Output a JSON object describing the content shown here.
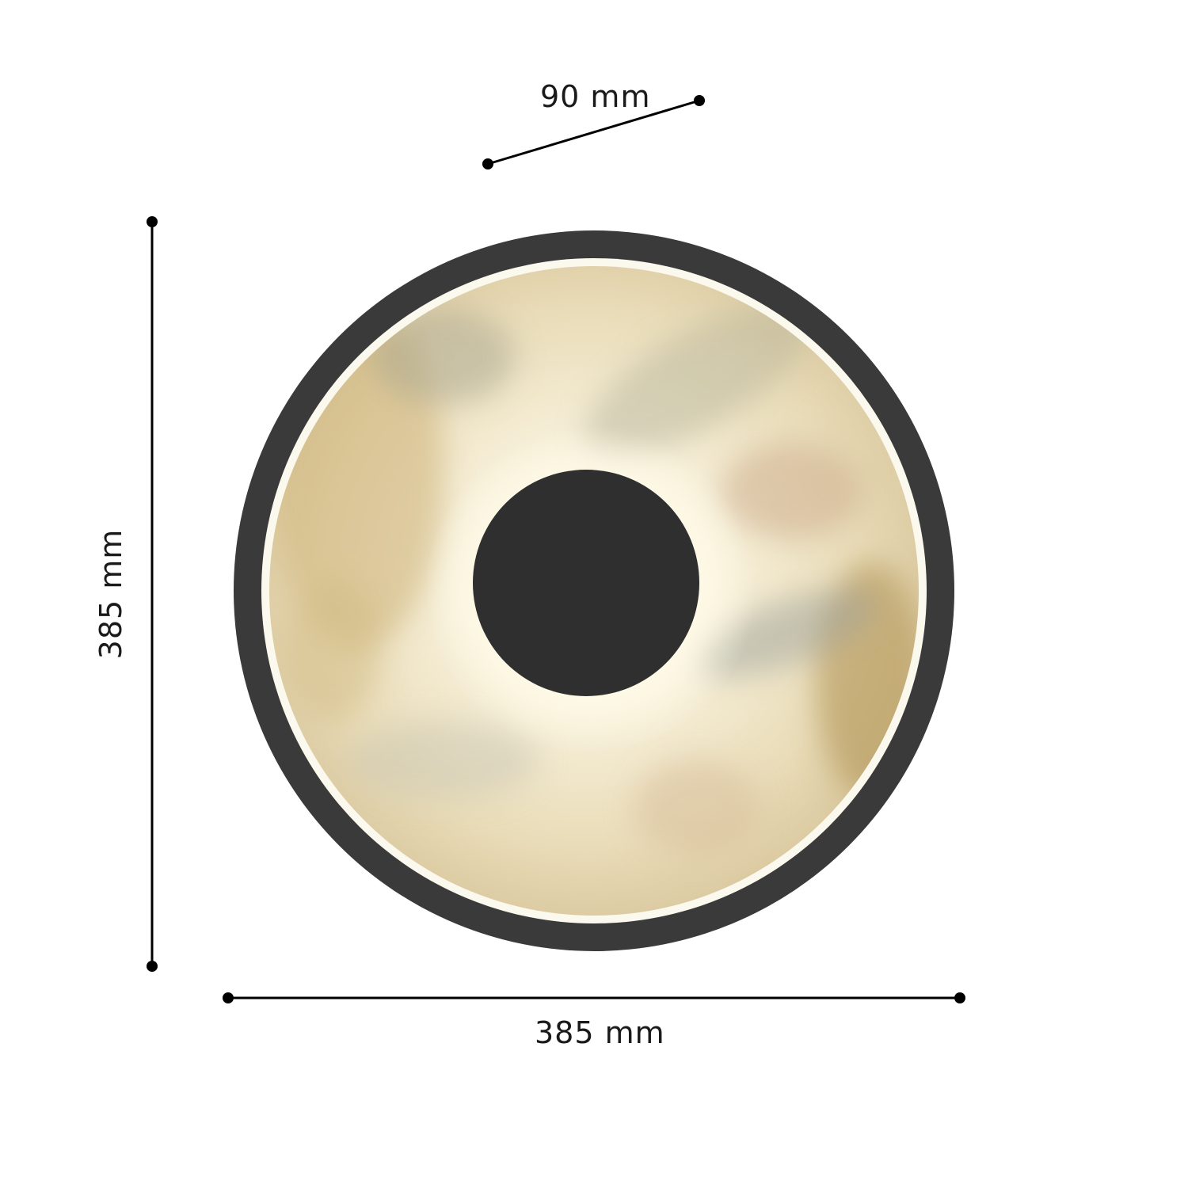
{
  "dimensions": {
    "depth": "90 mm",
    "height": "385 mm",
    "width": "385 mm"
  },
  "colors": {
    "frame": "#3a3a3a",
    "center_disc": "#2f2f2f",
    "marble_light": "#fbf6e6",
    "marble_warm": "#d9c290",
    "marble_grey": "#a9aa98",
    "dimension_line": "#000000"
  }
}
